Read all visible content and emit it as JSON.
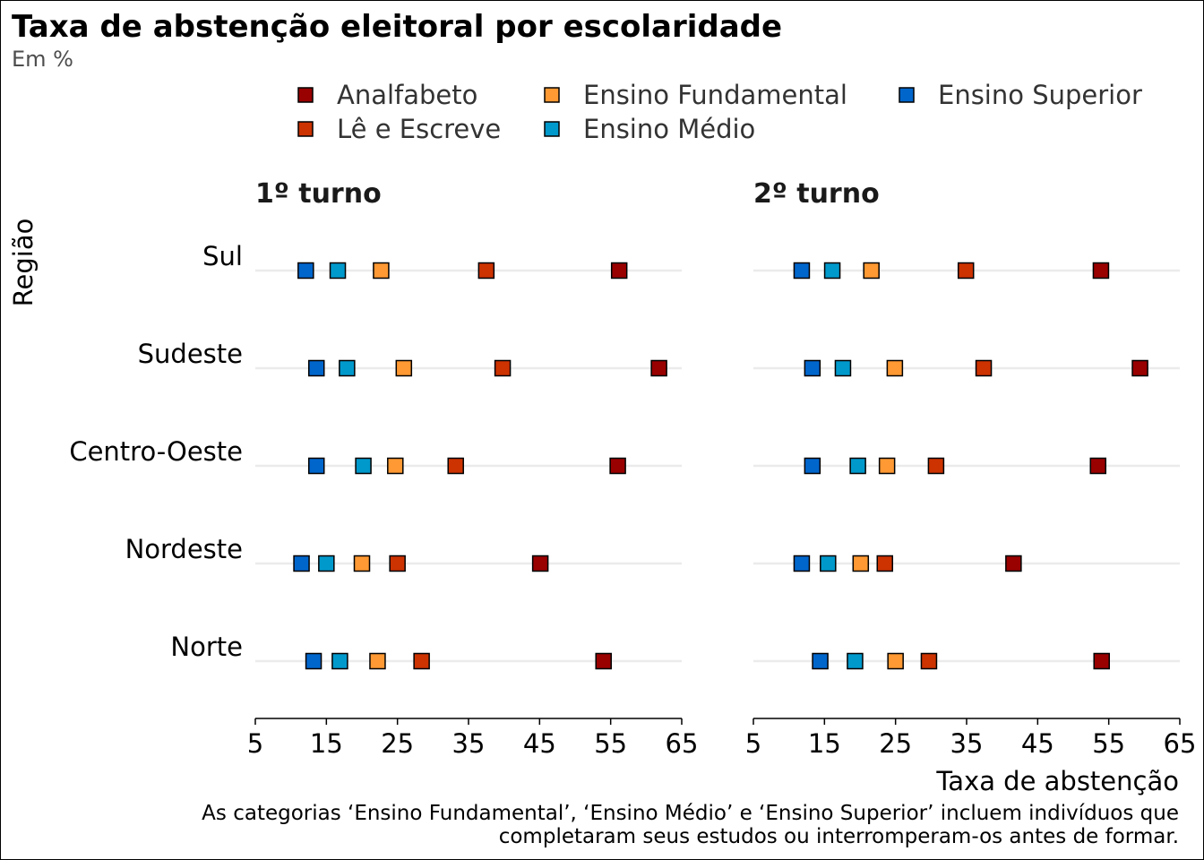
{
  "chart_data": {
    "type": "scatter",
    "title": "Taxa de abstenção eleitoral por escolaridade",
    "subtitle": "Em %",
    "xlabel": "Taxa de abstenção",
    "ylabel": "Região",
    "caption": [
      "As categorias ‘Ensino Fundamental’, ‘Ensino Médio’ e ‘Ensino Superior’ incluem indivíduos que",
      "completaram seus estudos ou interromperam-os antes de formar."
    ],
    "xlim": [
      5,
      65
    ],
    "xticks": [
      5,
      15,
      25,
      35,
      45,
      55,
      65
    ],
    "legend_position": "top",
    "grid": "horizontal",
    "categories": [
      "Sul",
      "Sudeste",
      "Centro-Oeste",
      "Nordeste",
      "Norte"
    ],
    "series": [
      {
        "name": "Analfabeto",
        "color": "#990000"
      },
      {
        "name": "Lê e Escreve",
        "color": "#CC3300"
      },
      {
        "name": "Ensino Fundamental",
        "color": "#FF9933"
      },
      {
        "name": "Ensino Médio",
        "color": "#0099CC"
      },
      {
        "name": "Ensino Superior",
        "color": "#0066CC"
      }
    ],
    "legend_order": [
      "Analfabeto",
      "Lê e Escreve",
      "Ensino Fundamental",
      "Ensino Médio",
      "Ensino Superior"
    ],
    "panels": [
      {
        "title": "1º turno",
        "values": {
          "Sul": {
            "Analfabeto": 56.2,
            "Lê e Escreve": 37.5,
            "Ensino Fundamental": 22.7,
            "Ensino Médio": 16.6,
            "Ensino Superior": 12.1
          },
          "Sudeste": {
            "Analfabeto": 61.8,
            "Lê e Escreve": 39.8,
            "Ensino Fundamental": 25.9,
            "Ensino Médio": 17.9,
            "Ensino Superior": 13.6
          },
          "Centro-Oeste": {
            "Analfabeto": 56.0,
            "Lê e Escreve": 33.2,
            "Ensino Fundamental": 24.7,
            "Ensino Médio": 20.2,
            "Ensino Superior": 13.6
          },
          "Nordeste": {
            "Analfabeto": 45.1,
            "Lê e Escreve": 25.0,
            "Ensino Fundamental": 20.0,
            "Ensino Médio": 15.0,
            "Ensino Superior": 11.5
          },
          "Norte": {
            "Analfabeto": 54.0,
            "Lê e Escreve": 28.4,
            "Ensino Fundamental": 22.2,
            "Ensino Médio": 16.9,
            "Ensino Superior": 13.2
          }
        }
      },
      {
        "title": "2º turno",
        "values": {
          "Sul": {
            "Analfabeto": 53.9,
            "Lê e Escreve": 34.9,
            "Ensino Fundamental": 21.6,
            "Ensino Médio": 16.1,
            "Ensino Superior": 11.8
          },
          "Sudeste": {
            "Analfabeto": 59.4,
            "Lê e Escreve": 37.4,
            "Ensino Fundamental": 24.9,
            "Ensino Médio": 17.6,
            "Ensino Superior": 13.3
          },
          "Centro-Oeste": {
            "Analfabeto": 53.5,
            "Lê e Escreve": 30.7,
            "Ensino Fundamental": 23.8,
            "Ensino Médio": 19.7,
            "Ensino Superior": 13.3
          },
          "Nordeste": {
            "Analfabeto": 41.6,
            "Lê e Escreve": 23.5,
            "Ensino Fundamental": 20.1,
            "Ensino Médio": 15.5,
            "Ensino Superior": 11.8
          },
          "Norte": {
            "Analfabeto": 54.0,
            "Lê e Escreve": 29.7,
            "Ensino Fundamental": 25.0,
            "Ensino Médio": 19.3,
            "Ensino Superior": 14.4
          }
        }
      }
    ]
  }
}
